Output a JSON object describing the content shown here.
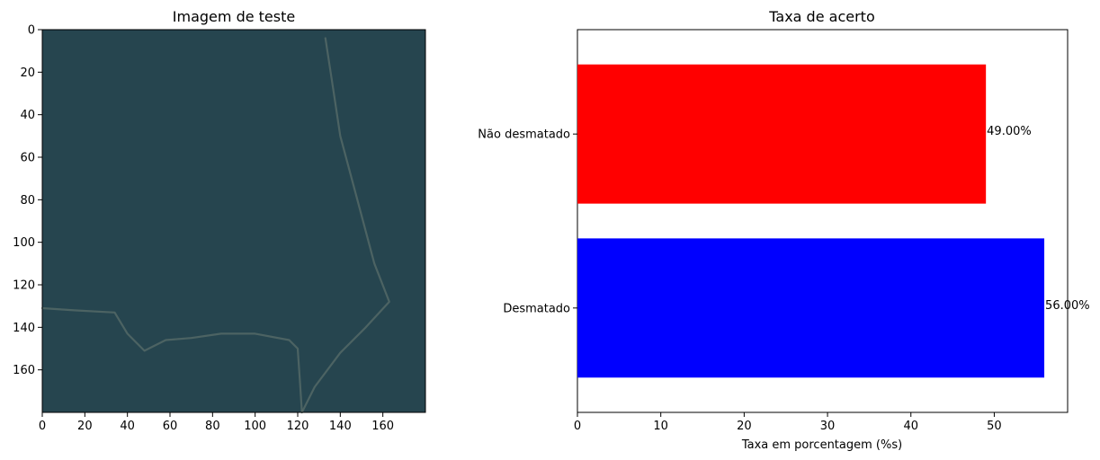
{
  "chart_data": [
    {
      "type": "image",
      "title": "Imagem de teste",
      "xlim": [
        0,
        180
      ],
      "ylim": [
        180,
        0
      ],
      "xticks": [
        0,
        20,
        40,
        60,
        80,
        100,
        120,
        140,
        160
      ],
      "yticks": [
        0,
        20,
        40,
        60,
        80,
        100,
        120,
        140,
        160
      ],
      "colors": {
        "background": "#26454f",
        "road": "#5a6e6a"
      },
      "road_paths": [
        [
          [
            133,
            4
          ],
          [
            137,
            30
          ],
          [
            140,
            50
          ],
          [
            148,
            80
          ],
          [
            156,
            110
          ],
          [
            163,
            128
          ],
          [
            152,
            140
          ],
          [
            140,
            152
          ],
          [
            128,
            168
          ],
          [
            122,
            180
          ]
        ],
        [
          [
            0,
            131
          ],
          [
            15,
            132
          ],
          [
            34,
            133
          ],
          [
            40,
            143
          ],
          [
            48,
            151
          ],
          [
            58,
            146
          ],
          [
            70,
            145
          ],
          [
            84,
            143
          ],
          [
            100,
            143
          ],
          [
            116,
            146
          ],
          [
            120,
            150
          ],
          [
            121,
            165
          ],
          [
            122,
            180
          ]
        ]
      ]
    },
    {
      "type": "bar",
      "orientation": "horizontal",
      "title": "Taxa de acerto",
      "xlabel": "Taxa em porcentagem (%s)",
      "ylabel": "",
      "xlim": [
        0,
        58.8
      ],
      "xticks": [
        0,
        10,
        20,
        30,
        40,
        50
      ],
      "categories": [
        "Desmatado",
        "Não desmatado"
      ],
      "values": [
        56.0,
        49.0
      ],
      "value_labels": [
        "56.00%",
        "49.00%"
      ],
      "colors": [
        "#0000ff",
        "#ff0000"
      ]
    }
  ]
}
